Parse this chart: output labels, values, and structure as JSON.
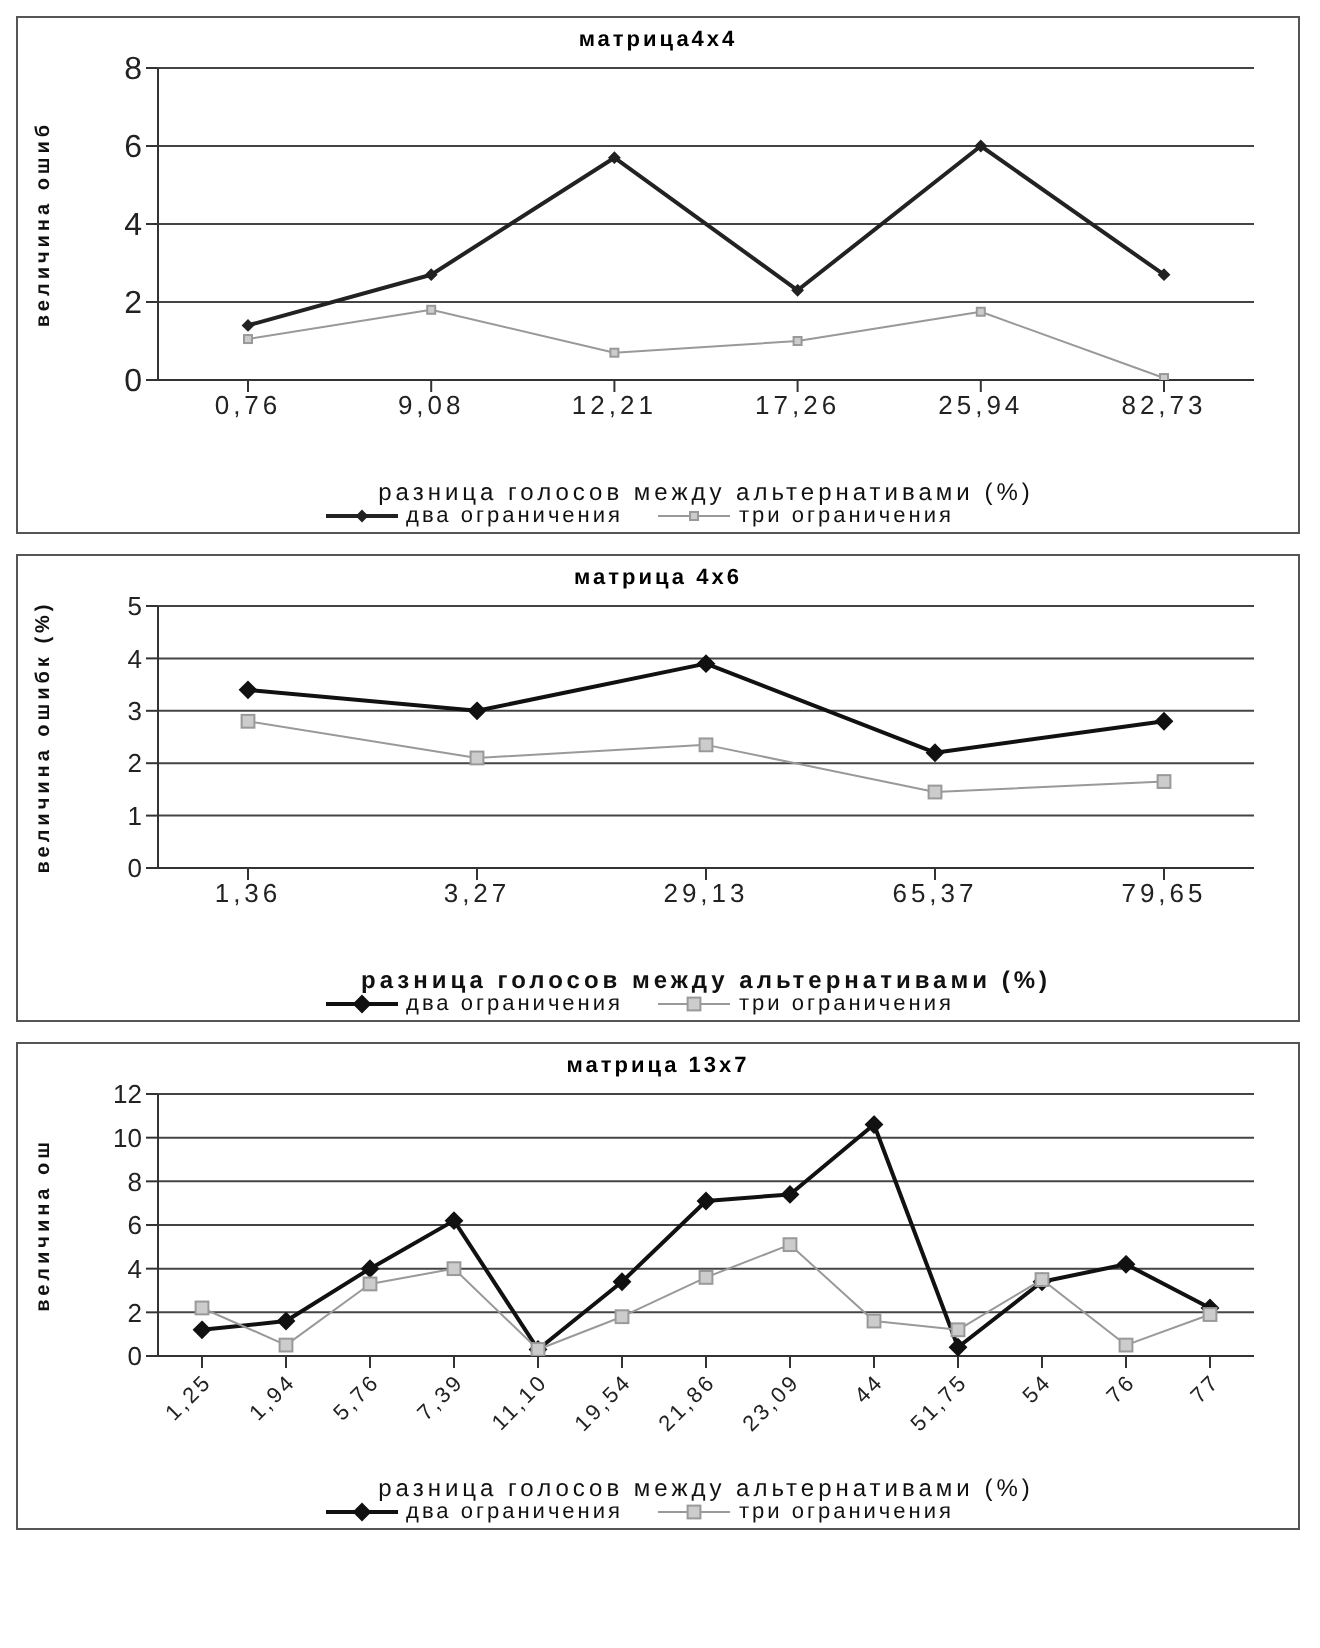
{
  "chart_data": [
    {
      "type": "line",
      "title": "матрица4x4",
      "xlabel": "разница голосов между альтернативами (%)",
      "ylabel": "величина ошиб",
      "categories": [
        "0,76",
        "9,08",
        "12,21",
        "17,26",
        "25,94",
        "82,73"
      ],
      "series": [
        {
          "name": "два ограничения",
          "color": "#222222",
          "marker": "diamond",
          "values": [
            1.4,
            2.7,
            5.7,
            2.3,
            6.0,
            2.7
          ]
        },
        {
          "name": "три ограничения",
          "color": "#999999",
          "marker": "square",
          "values": [
            1.05,
            1.8,
            0.7,
            1.0,
            1.75,
            0.05
          ]
        }
      ],
      "ylim": [
        0,
        8
      ],
      "yticks": [
        0,
        2,
        4,
        6,
        8
      ],
      "grid": "y",
      "legend": "bottom"
    },
    {
      "type": "line",
      "title": "матрица 4x6",
      "xlabel": "разница голосов между альтернативами (%)",
      "ylabel": "величина ошибк (%)",
      "categories": [
        "1,36",
        "3,27",
        "29,13",
        "65,37",
        "79,65"
      ],
      "series": [
        {
          "name": "два ограничения",
          "color": "#111111",
          "marker": "diamond",
          "values": [
            3.4,
            3.0,
            3.9,
            2.2,
            2.8
          ]
        },
        {
          "name": "три ограничения",
          "color": "#999999",
          "marker": "square",
          "values": [
            2.8,
            2.1,
            2.35,
            1.45,
            1.65
          ]
        }
      ],
      "ylim": [
        0,
        5
      ],
      "yticks": [
        0,
        1,
        2,
        3,
        4,
        5
      ],
      "grid": "y",
      "legend": "bottom"
    },
    {
      "type": "line",
      "title": "матрица 13x7",
      "xlabel": "разница голосов между альтернативами (%)",
      "ylabel": "величина ош",
      "categories": [
        "1,25",
        "1,94",
        "5,76",
        "7,39",
        "11,10",
        "19,54",
        "21,86",
        "23,09",
        "44",
        "51,75",
        "54",
        "76",
        "77"
      ],
      "series": [
        {
          "name": "два ограничения",
          "color": "#111111",
          "marker": "diamond",
          "values": [
            1.2,
            1.6,
            4.0,
            6.2,
            0.3,
            3.4,
            7.1,
            7.4,
            10.6,
            0.4,
            3.4,
            4.2,
            2.2
          ]
        },
        {
          "name": "три ограничения",
          "color": "#999999",
          "marker": "square",
          "values": [
            2.2,
            0.5,
            3.3,
            4.0,
            0.3,
            1.8,
            3.6,
            5.1,
            1.6,
            1.2,
            3.5,
            0.5,
            1.9
          ]
        }
      ],
      "ylim": [
        0,
        12
      ],
      "yticks": [
        0,
        2,
        4,
        6,
        8,
        10,
        12
      ],
      "grid": "y",
      "legend": "bottom"
    }
  ]
}
